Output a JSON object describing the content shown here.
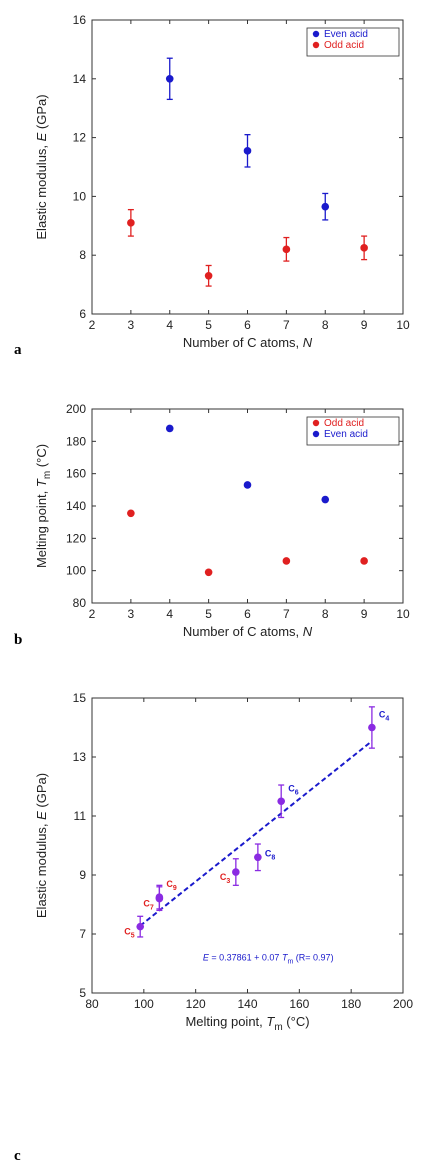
{
  "chart_data": [
    {
      "panel": "a",
      "type": "scatter",
      "xlabel": "Number of C atoms, ",
      "xlabel_italic": "N",
      "ylabel": "Elastic modulus, ",
      "ylabel_italic": "E",
      "ylabel_tail": " (GPa)",
      "xlim": [
        2,
        10
      ],
      "ylim": [
        6,
        16
      ],
      "xticks": [
        2,
        3,
        4,
        5,
        6,
        7,
        8,
        9,
        10
      ],
      "yticks": [
        6,
        8,
        10,
        12,
        14,
        16
      ],
      "legend_position": "top-right",
      "series": [
        {
          "name": "Even acid",
          "color": "#1a1acc",
          "x": [
            4,
            6,
            8
          ],
          "y": [
            14.0,
            11.55,
            9.65
          ],
          "err": [
            0.7,
            0.55,
            0.45
          ]
        },
        {
          "name": "Odd acid",
          "color": "#e02020",
          "x": [
            3,
            5,
            7,
            9
          ],
          "y": [
            9.1,
            7.3,
            8.2,
            8.25
          ],
          "err": [
            0.45,
            0.35,
            0.4,
            0.4
          ]
        }
      ]
    },
    {
      "panel": "b",
      "type": "scatter",
      "xlabel": "Number of C atoms, ",
      "xlabel_italic": "N",
      "ylabel": "Melting point, ",
      "ylabel_italic": "T",
      "ylabel_sub": "m",
      "ylabel_tail": " (°C)",
      "xlim": [
        2,
        10
      ],
      "ylim": [
        80,
        200
      ],
      "xticks": [
        2,
        3,
        4,
        5,
        6,
        7,
        8,
        9,
        10
      ],
      "yticks": [
        80,
        100,
        120,
        140,
        160,
        180,
        200
      ],
      "legend_position": "top-right",
      "series": [
        {
          "name": "Odd acid",
          "color": "#e02020",
          "x": [
            3,
            5,
            7,
            9
          ],
          "y": [
            135.5,
            99,
            106,
            106
          ]
        },
        {
          "name": "Even acid",
          "color": "#1a1acc",
          "x": [
            4,
            6,
            8
          ],
          "y": [
            188,
            153,
            144
          ]
        }
      ]
    },
    {
      "panel": "c",
      "type": "scatter",
      "xlabel": "Melting point, ",
      "xlabel_italic": "T",
      "xlabel_sub": "m",
      "xlabel_tail": " (°C)",
      "ylabel": "Elastic modulus, ",
      "ylabel_italic": "E",
      "ylabel_tail": " (GPa)",
      "xlim": [
        80,
        200
      ],
      "ylim": [
        5,
        15
      ],
      "xticks": [
        80,
        100,
        120,
        140,
        160,
        180,
        200
      ],
      "yticks": [
        5,
        7,
        9,
        11,
        13,
        15
      ],
      "point_color": "#8a2be2",
      "points": [
        {
          "label": "C",
          "sub": "5",
          "x": 98.6,
          "y": 7.25,
          "err": 0.35,
          "label_color": "#e02020",
          "label_side": "left"
        },
        {
          "label": "C",
          "sub": "7",
          "x": 106,
          "y": 8.2,
          "err": 0.4,
          "label_color": "#e02020",
          "label_side": "left"
        },
        {
          "label": "C",
          "sub": "9",
          "x": 106,
          "y": 8.25,
          "err": 0.4,
          "label_color": "#e02020",
          "label_side": "upright"
        },
        {
          "label": "C",
          "sub": "3",
          "x": 135.5,
          "y": 9.1,
          "err": 0.45,
          "label_color": "#e02020",
          "label_side": "left"
        },
        {
          "label": "C",
          "sub": "8",
          "x": 144,
          "y": 9.6,
          "err": 0.45,
          "label_color": "#1a1acc",
          "label_side": "right"
        },
        {
          "label": "C",
          "sub": "6",
          "x": 153,
          "y": 11.5,
          "err": 0.55,
          "label_color": "#1a1acc",
          "label_side": "upright"
        },
        {
          "label": "C",
          "sub": "4",
          "x": 188,
          "y": 14.0,
          "err": 0.7,
          "label_color": "#1a1acc",
          "label_side": "upright"
        }
      ],
      "fit": {
        "intercept": 0.37861,
        "slope": 0.07,
        "x_from": 98.6,
        "x_to": 188,
        "color": "#1a1acc"
      },
      "equation_text": {
        "lhs": "E",
        "mid": " = 0.37861 + 0.07 ",
        "var": "T",
        "sub": "m",
        "tail": "   (R= 0.97)"
      }
    }
  ]
}
